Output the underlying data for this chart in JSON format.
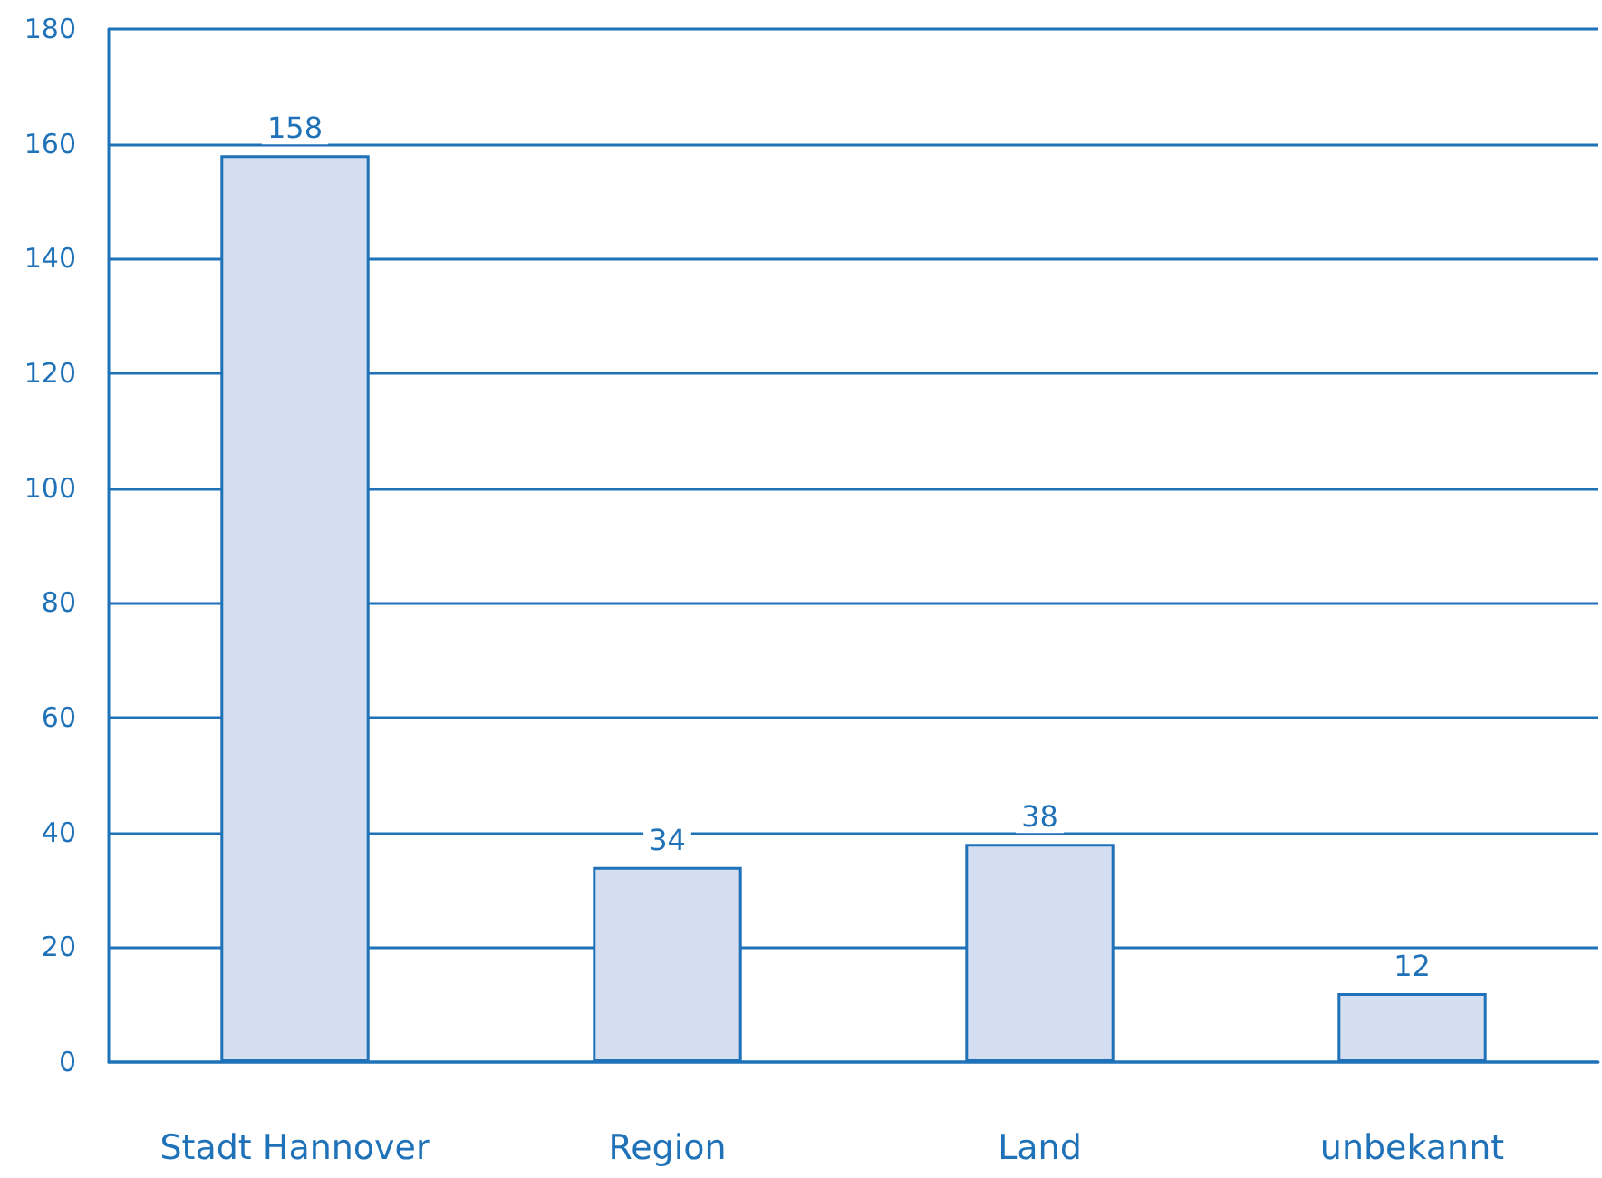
{
  "chart_data": {
    "type": "bar",
    "categories": [
      "Stadt Hannover",
      "Region",
      "Land",
      "unbekannt"
    ],
    "values": [
      158,
      34,
      38,
      12
    ],
    "color": "#d5def0",
    "ylim": [
      0,
      180
    ],
    "yticks": [
      0,
      20,
      40,
      60,
      80,
      100,
      120,
      140,
      160,
      180
    ],
    "grid": "y",
    "data_labels": true
  }
}
